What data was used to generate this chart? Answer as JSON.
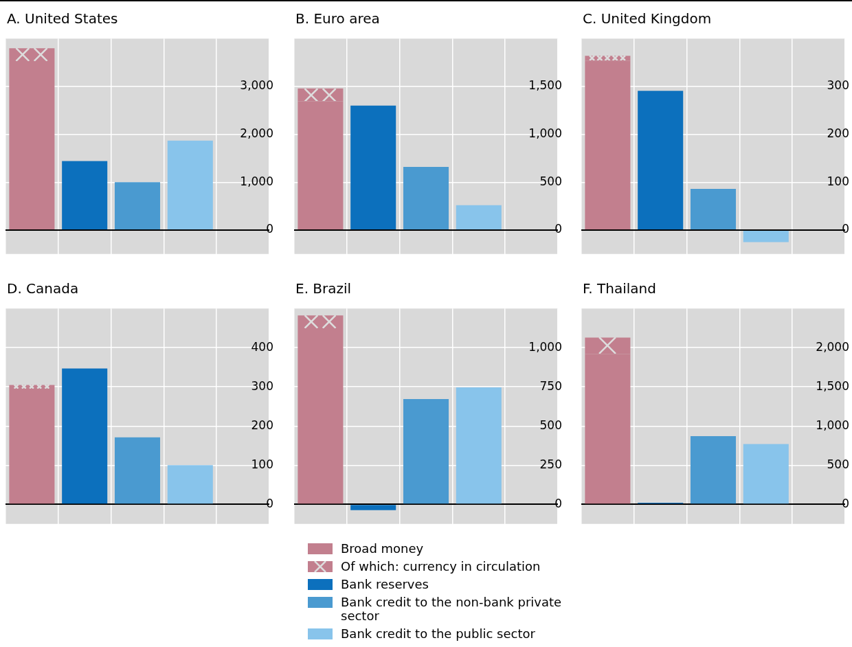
{
  "chart_data": [
    {
      "type": "bar",
      "title": "A. United States",
      "stacked": true,
      "grid": true,
      "tick_labels": "y",
      "categories": [
        null,
        null,
        null,
        null,
        null
      ],
      "ylim": [
        -500,
        4000
      ],
      "yticks": [
        0,
        {
          "value": 1000,
          "label": "1,000"
        },
        {
          "value": 2000,
          "label": "2,000"
        },
        {
          "value": 3000,
          "label": "3,000"
        }
      ],
      "series": [
        {
          "color": "#c27f8e",
          "values": [
            3530,
            null,
            null,
            null,
            null
          ]
        },
        {
          "color": "#c27f8e",
          "values": [
            270,
            null,
            null,
            null,
            null
          ]
        },
        {
          "color": "#0c70bd",
          "values": [
            null,
            1440,
            null,
            null,
            null
          ]
        },
        {
          "color": "#4a9ad0",
          "values": [
            null,
            null,
            1000,
            null,
            null
          ]
        },
        {
          "color": "#88c4eb",
          "values": [
            null,
            null,
            null,
            1870,
            null
          ]
        }
      ]
    },
    {
      "type": "bar",
      "title": "B. Euro area",
      "stacked": true,
      "grid": true,
      "tick_labels": "y",
      "categories": [
        null,
        null,
        null,
        null,
        null
      ],
      "ylim": [
        -250,
        2000
      ],
      "yticks": [
        0,
        500,
        {
          "value": 1000,
          "label": "1,000"
        },
        {
          "value": 1500,
          "label": "1,500"
        }
      ],
      "series": [
        {
          "color": "#c27f8e",
          "values": [
            1345,
            null,
            null,
            null,
            null
          ]
        },
        {
          "color": "#c27f8e",
          "values": [
            135,
            null,
            null,
            null,
            null
          ]
        },
        {
          "color": "#0c70bd",
          "values": [
            null,
            1300,
            null,
            null,
            null
          ]
        },
        {
          "color": "#4a9ad0",
          "values": [
            null,
            null,
            660,
            null,
            null
          ]
        },
        {
          "color": "#88c4eb",
          "values": [
            null,
            null,
            null,
            260,
            null
          ]
        }
      ]
    },
    {
      "type": "bar",
      "title": "C. United Kingdom",
      "stacked": true,
      "grid": true,
      "tick_labels": "y",
      "categories": [
        null,
        null,
        null,
        null,
        null
      ],
      "ylim": [
        -50,
        400
      ],
      "yticks": [
        0,
        100,
        200,
        300
      ],
      "series": [
        {
          "color": "#c27f8e",
          "values": [
            354,
            null,
            null,
            null,
            null
          ]
        },
        {
          "color": "#c27f8e",
          "values": [
            10,
            null,
            null,
            null,
            null
          ]
        },
        {
          "color": "#0c70bd",
          "values": [
            null,
            291,
            null,
            null,
            null
          ]
        },
        {
          "color": "#4a9ad0",
          "values": [
            null,
            null,
            86,
            null,
            null
          ]
        },
        {
          "color": "#88c4eb",
          "values": [
            null,
            null,
            null,
            -25,
            null
          ]
        }
      ]
    },
    {
      "type": "bar",
      "title": "D. Canada",
      "stacked": true,
      "grid": true,
      "tick_labels": "y",
      "categories": [
        null,
        null,
        null,
        null,
        null
      ],
      "ylim": [
        -50,
        500
      ],
      "yticks": [
        0,
        100,
        200,
        300,
        400
      ],
      "series": [
        {
          "color": "#c27f8e",
          "values": [
            295,
            null,
            null,
            null,
            null
          ]
        },
        {
          "color": "#c27f8e",
          "values": [
            10,
            null,
            null,
            null,
            null
          ]
        },
        {
          "color": "#0c70bd",
          "values": [
            null,
            347,
            null,
            null,
            null
          ]
        },
        {
          "color": "#4a9ad0",
          "values": [
            null,
            null,
            171,
            null,
            null
          ]
        },
        {
          "color": "#88c4eb",
          "values": [
            null,
            null,
            null,
            100,
            null
          ]
        }
      ]
    },
    {
      "type": "bar",
      "title": "E. Brazil",
      "stacked": true,
      "grid": true,
      "tick_labels": "y",
      "legend": "bottom",
      "categories": [
        null,
        null,
        null,
        null,
        null
      ],
      "ylim": [
        -125,
        1250
      ],
      "yticks": [
        0,
        250,
        500,
        750,
        {
          "value": 1000,
          "label": "1,000"
        }
      ],
      "series": [
        {
          "name": "Broad money",
          "color": "#c27f8e",
          "values": [
            1124,
            null,
            null,
            null,
            null
          ]
        },
        {
          "name": "Of which: currency in circulation",
          "color": "#c27f8e",
          "values": [
            82,
            null,
            null,
            null,
            null
          ]
        },
        {
          "name": "Bank reserves",
          "color": "#0c70bd",
          "values": [
            null,
            -37,
            null,
            null,
            null
          ]
        },
        {
          "name": "Bank credit to the non-bank private sector",
          "color": "#4a9ad0",
          "values": [
            null,
            null,
            672,
            null,
            null
          ]
        },
        {
          "name": "Bank credit to the public sector",
          "color": "#88c4eb",
          "values": [
            null,
            null,
            null,
            747,
            null
          ]
        }
      ]
    },
    {
      "type": "bar",
      "title": "F. Thailand",
      "stacked": true,
      "grid": true,
      "tick_labels": "y",
      "categories": [
        null,
        null,
        null,
        null,
        null
      ],
      "ylim": [
        -250,
        2500
      ],
      "yticks": [
        0,
        500,
        {
          "value": 1000,
          "label": "1,000"
        },
        {
          "value": 1500,
          "label": "1,500"
        },
        {
          "value": 2000,
          "label": "2,000"
        }
      ],
      "series": [
        {
          "color": "#c27f8e",
          "values": [
            1920,
            null,
            null,
            null,
            null
          ]
        },
        {
          "color": "#c27f8e",
          "values": [
            210,
            null,
            null,
            null,
            null
          ]
        },
        {
          "color": "#0c70bd",
          "values": [
            null,
            20,
            null,
            null,
            null
          ]
        },
        {
          "color": "#4a9ad0",
          "values": [
            null,
            null,
            870,
            null,
            null
          ]
        },
        {
          "color": "#88c4eb",
          "values": [
            null,
            null,
            null,
            770,
            null
          ]
        }
      ]
    }
  ]
}
